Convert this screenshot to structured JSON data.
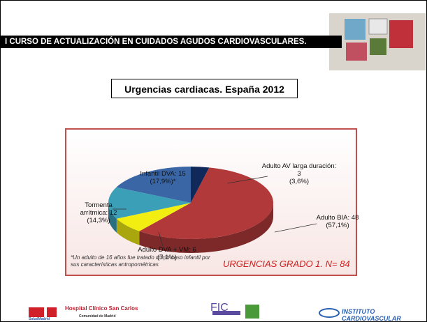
{
  "header": {
    "title": "I CURSO DE ACTUALIZACIÓN EN CUIDADOS AGUDOS CARDIOVASCULARES."
  },
  "slide_title": "Urgencias cardiacas. España 2012",
  "chart_data": {
    "type": "pie",
    "categories": [
      "Adulto AV larga duración: 3",
      "Adulto BIA: 48",
      "Adulto DVA + VM: 6",
      "Tormenta arrítmica: 12",
      "Infantil DVA: 15"
    ],
    "values": [
      3.6,
      57.1,
      7.1,
      14.3,
      17.9
    ],
    "value_labels": [
      "(3,6%)",
      "(57,1%)",
      "(7,1%)",
      "(14,3%)",
      "(17,9%)*"
    ],
    "colors": [
      "#10295a",
      "#b2393a",
      "#f2ee12",
      "#3b9fb8",
      "#3a66a6"
    ],
    "footnote": "*Un adulto de 16 años fue tratado como caso infantil por sus características antropométricas",
    "annotation": "URGENCIAS GRADO 1. N= 84"
  },
  "footer": {
    "logo1": "SaludMadrid",
    "logo2": "Hospital Clínico San Carlos",
    "logo3": "Comunidad de Madrid",
    "logo4": "FIC",
    "logo5": "INSTITUTO CARDIOVASCULAR"
  }
}
